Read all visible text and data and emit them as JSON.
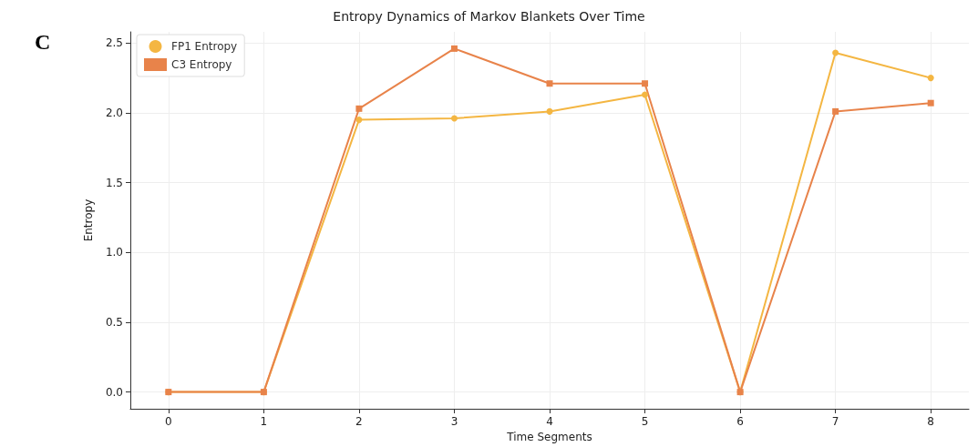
{
  "chart_data": {
    "type": "line",
    "title": "Entropy Dynamics of Markov Blankets Over Time",
    "xlabel": "Time Segments",
    "ylabel": "Entropy",
    "annotations": [
      "C"
    ],
    "x": [
      0,
      1,
      2,
      3,
      4,
      5,
      6,
      7,
      8
    ],
    "series": [
      {
        "name": "FP1 Entropy",
        "color": "#f4b642",
        "marker": "circle",
        "values": [
          0,
          0,
          1.95,
          1.96,
          2.01,
          2.13,
          0,
          2.43,
          2.25
        ]
      },
      {
        "name": "C3 Entropy",
        "color": "#e8834a",
        "marker": "square",
        "values": [
          0,
          0,
          2.03,
          2.46,
          2.21,
          2.21,
          0,
          2.01,
          2.07
        ]
      }
    ],
    "xlim": [
      -0.4,
      8.4
    ],
    "xticks": [
      0,
      1,
      2,
      3,
      4,
      5,
      6,
      7,
      8
    ],
    "ylim": [
      -0.12,
      2.58
    ],
    "yticks": [
      {
        "value": 0,
        "label": "0.0"
      },
      0.5,
      {
        "value": 1,
        "label": "1.0"
      },
      1.5,
      {
        "value": 2,
        "label": "2.0"
      },
      2.5
    ],
    "grid": true,
    "legend": "top left",
    "line_style": "solid"
  }
}
